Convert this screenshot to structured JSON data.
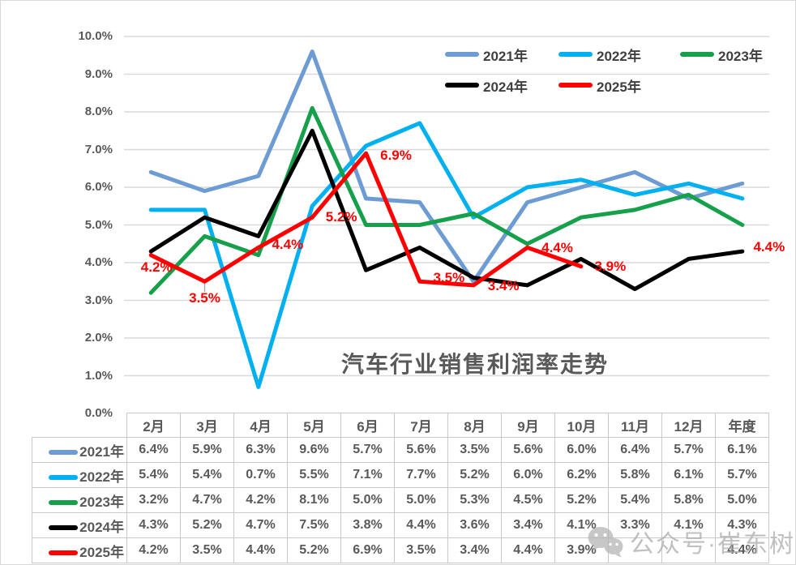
{
  "chart_data": {
    "type": "line",
    "title": "汽车行业销售利润率走势",
    "categories": [
      "2月",
      "3月",
      "4月",
      "5月",
      "6月",
      "7月",
      "8月",
      "9月",
      "10月",
      "11月",
      "12月",
      "年度"
    ],
    "xlabel": "",
    "ylabel": "",
    "ylim": [
      0,
      10
    ],
    "y_tick_labels": [
      "0.0%",
      "1.0%",
      "2.0%",
      "3.0%",
      "4.0%",
      "5.0%",
      "6.0%",
      "7.0%",
      "8.0%",
      "9.0%",
      "10.0%"
    ],
    "grid": true,
    "legend_position": "top-right-inside",
    "series": [
      {
        "name": "2021年",
        "color": "#6D9BD3",
        "values": [
          6.4,
          5.9,
          6.3,
          9.6,
          5.7,
          5.6,
          3.5,
          5.6,
          6.0,
          6.4,
          5.7,
          6.1
        ]
      },
      {
        "name": "2022年",
        "color": "#00B0F0",
        "values": [
          5.4,
          5.4,
          0.7,
          5.5,
          7.1,
          7.7,
          5.2,
          6.0,
          6.2,
          5.8,
          6.1,
          5.7
        ]
      },
      {
        "name": "2023年",
        "color": "#16A04B",
        "values": [
          3.2,
          4.7,
          4.2,
          8.1,
          5.0,
          5.0,
          5.3,
          4.5,
          5.2,
          5.4,
          5.8,
          5.0
        ]
      },
      {
        "name": "2024年",
        "color": "#000000",
        "values": [
          4.3,
          5.2,
          4.7,
          7.5,
          3.8,
          4.4,
          3.6,
          3.4,
          4.1,
          3.3,
          4.1,
          4.3
        ]
      },
      {
        "name": "2025年",
        "color": "#FF0000",
        "values": [
          4.2,
          3.5,
          4.4,
          5.2,
          6.9,
          3.5,
          3.4,
          4.4,
          3.9,
          null,
          null,
          4.4
        ],
        "data_labels": [
          "4.2%",
          "3.5%",
          "4.4%",
          "5.2%",
          "6.9%",
          "3.5%",
          "3.4%",
          "4.4%",
          "3.9%",
          null,
          null,
          "4.4%"
        ]
      }
    ]
  },
  "table": {
    "columns": [
      "2月",
      "3月",
      "4月",
      "5月",
      "6月",
      "7月",
      "8月",
      "9月",
      "10月",
      "11月",
      "12月",
      "年度"
    ],
    "rows": [
      {
        "name": "2021年",
        "color": "#6D9BD3",
        "values": [
          "6.4%",
          "5.9%",
          "6.3%",
          "9.6%",
          "5.7%",
          "5.6%",
          "3.5%",
          "5.6%",
          "6.0%",
          "6.4%",
          "5.7%",
          "6.1%"
        ]
      },
      {
        "name": "2022年",
        "color": "#00B0F0",
        "values": [
          "5.4%",
          "5.4%",
          "0.7%",
          "5.5%",
          "7.1%",
          "7.7%",
          "5.2%",
          "6.0%",
          "6.2%",
          "5.8%",
          "6.1%",
          "5.7%"
        ]
      },
      {
        "name": "2023年",
        "color": "#16A04B",
        "values": [
          "3.2%",
          "4.7%",
          "4.2%",
          "8.1%",
          "5.0%",
          "5.0%",
          "5.3%",
          "4.5%",
          "5.2%",
          "5.4%",
          "5.8%",
          "5.0%"
        ]
      },
      {
        "name": "2024年",
        "color": "#000000",
        "values": [
          "4.3%",
          "5.2%",
          "4.7%",
          "7.5%",
          "3.8%",
          "4.4%",
          "3.6%",
          "3.4%",
          "4.1%",
          "3.3%",
          "4.1%",
          "4.3%"
        ]
      },
      {
        "name": "2025年",
        "color": "#FF0000",
        "values": [
          "4.2%",
          "3.5%",
          "4.4%",
          "5.2%",
          "6.9%",
          "3.5%",
          "3.4%",
          "4.4%",
          "3.9%",
          "",
          "",
          "4.4%"
        ]
      }
    ]
  },
  "watermark": {
    "icon": "wechat-icon",
    "text": "公众号·崔东树"
  },
  "colors": {
    "gridline": "#D9D9D9",
    "axis_text": "#595959",
    "table_border": "#C9C9C9",
    "title_text": "#595959",
    "data_label": "#FF0000",
    "watermark": "#ABABAB"
  }
}
